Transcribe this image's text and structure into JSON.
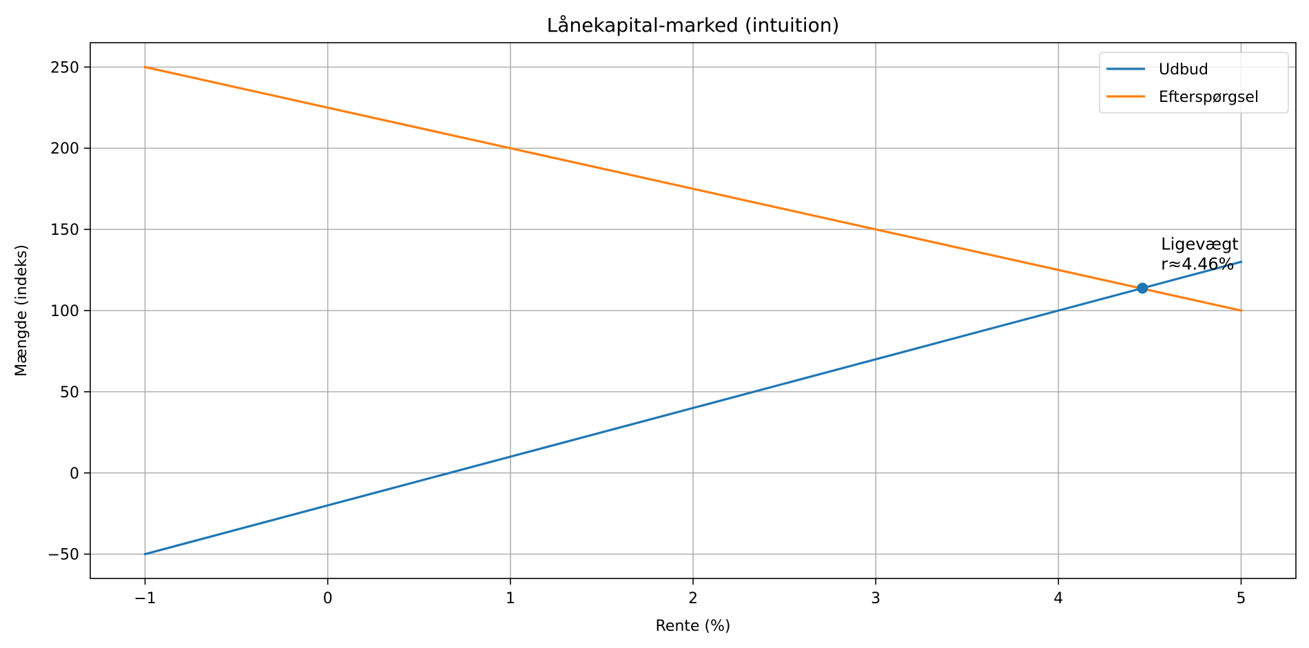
{
  "chart_data": {
    "type": "line",
    "title": "Lånekapital-marked (intuition)",
    "xlabel": "Rente (%)",
    "ylabel": "Mængde (indeks)",
    "xlim": [
      -1.3,
      5.3
    ],
    "ylim": [
      -65,
      265
    ],
    "xticks": [
      -1,
      0,
      1,
      2,
      3,
      4,
      5
    ],
    "yticks": [
      -50,
      0,
      50,
      100,
      150,
      200,
      250
    ],
    "xtick_labels": [
      "−1",
      "0",
      "1",
      "2",
      "3",
      "4",
      "5"
    ],
    "ytick_labels": [
      "−50",
      "0",
      "50",
      "100",
      "150",
      "200",
      "250"
    ],
    "grid": true,
    "legend_position": "top-right",
    "series": [
      {
        "name": "Udbud",
        "color": "#1f77b4",
        "x": [
          -1,
          5
        ],
        "y": [
          -50,
          130
        ]
      },
      {
        "name": "Efterspørgsel",
        "color": "#ff7f0e",
        "x": [
          -1,
          5
        ],
        "y": [
          250,
          100
        ]
      }
    ],
    "equilibrium": {
      "x": 4.46,
      "y": 113.8,
      "color": "#1f77b4",
      "label_line1": "Ligevægt",
      "label_line2": "r≈4.46%"
    }
  }
}
